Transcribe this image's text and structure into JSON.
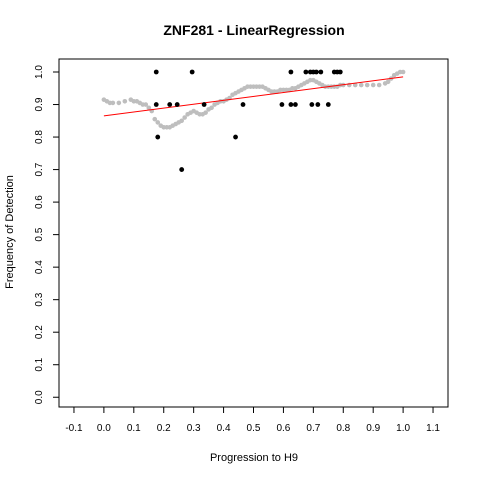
{
  "chart_data": {
    "type": "scatter",
    "title": "ZNF281 - LinearRegression",
    "xlabel": "Progression to H9",
    "ylabel": "Frequency of Detection",
    "xlim": [
      -0.15,
      1.15
    ],
    "ylim": [
      -0.03,
      1.04
    ],
    "xticks": [
      "-0.1",
      "0.0",
      "0.1",
      "0.2",
      "0.3",
      "0.4",
      "0.5",
      "0.6",
      "0.7",
      "0.8",
      "0.9",
      "1.0",
      "1.1"
    ],
    "yticks": [
      "0.0",
      "0.1",
      "0.2",
      "0.3",
      "0.4",
      "0.5",
      "0.6",
      "0.7",
      "0.8",
      "0.9",
      "1.0"
    ],
    "grid": false,
    "legend": "none",
    "colors": {
      "observed": "#000000",
      "smoothed": "#bebebe",
      "regression": "#ff0000"
    },
    "series": [
      {
        "role": "observed",
        "points": [
          [
            0.175,
            1.0
          ],
          [
            0.175,
            0.9
          ],
          [
            0.18,
            0.8
          ],
          [
            0.22,
            0.9
          ],
          [
            0.245,
            0.9
          ],
          [
            0.26,
            0.7
          ],
          [
            0.295,
            1.0
          ],
          [
            0.335,
            0.9
          ],
          [
            0.44,
            0.8
          ],
          [
            0.465,
            0.9
          ],
          [
            0.595,
            0.9
          ],
          [
            0.625,
            1.0
          ],
          [
            0.625,
            0.9
          ],
          [
            0.64,
            0.9
          ],
          [
            0.675,
            1.0
          ],
          [
            0.69,
            1.0
          ],
          [
            0.695,
            0.9
          ],
          [
            0.7,
            1.0
          ],
          [
            0.71,
            1.0
          ],
          [
            0.715,
            0.9
          ],
          [
            0.725,
            1.0
          ],
          [
            0.75,
            0.9
          ],
          [
            0.77,
            1.0
          ],
          [
            0.78,
            1.0
          ],
          [
            0.79,
            1.0
          ]
        ]
      },
      {
        "role": "smoothed",
        "points": [
          [
            0.0,
            0.915
          ],
          [
            0.01,
            0.91
          ],
          [
            0.02,
            0.905
          ],
          [
            0.03,
            0.905
          ],
          [
            0.05,
            0.905
          ],
          [
            0.07,
            0.91
          ],
          [
            0.09,
            0.915
          ],
          [
            0.1,
            0.91
          ],
          [
            0.11,
            0.91
          ],
          [
            0.12,
            0.905
          ],
          [
            0.13,
            0.9
          ],
          [
            0.14,
            0.9
          ],
          [
            0.15,
            0.89
          ],
          [
            0.16,
            0.88
          ],
          [
            0.17,
            0.855
          ],
          [
            0.18,
            0.845
          ],
          [
            0.19,
            0.835
          ],
          [
            0.2,
            0.83
          ],
          [
            0.21,
            0.83
          ],
          [
            0.22,
            0.83
          ],
          [
            0.23,
            0.835
          ],
          [
            0.24,
            0.84
          ],
          [
            0.25,
            0.845
          ],
          [
            0.26,
            0.85
          ],
          [
            0.27,
            0.86
          ],
          [
            0.28,
            0.87
          ],
          [
            0.29,
            0.875
          ],
          [
            0.3,
            0.88
          ],
          [
            0.31,
            0.875
          ],
          [
            0.32,
            0.87
          ],
          [
            0.33,
            0.87
          ],
          [
            0.34,
            0.875
          ],
          [
            0.35,
            0.885
          ],
          [
            0.36,
            0.89
          ],
          [
            0.37,
            0.9
          ],
          [
            0.38,
            0.905
          ],
          [
            0.39,
            0.91
          ],
          [
            0.4,
            0.91
          ],
          [
            0.41,
            0.915
          ],
          [
            0.42,
            0.92
          ],
          [
            0.43,
            0.93
          ],
          [
            0.44,
            0.935
          ],
          [
            0.45,
            0.94
          ],
          [
            0.46,
            0.945
          ],
          [
            0.47,
            0.95
          ],
          [
            0.48,
            0.955
          ],
          [
            0.49,
            0.955
          ],
          [
            0.5,
            0.955
          ],
          [
            0.51,
            0.955
          ],
          [
            0.52,
            0.955
          ],
          [
            0.53,
            0.955
          ],
          [
            0.54,
            0.95
          ],
          [
            0.55,
            0.945
          ],
          [
            0.56,
            0.94
          ],
          [
            0.57,
            0.94
          ],
          [
            0.58,
            0.94
          ],
          [
            0.59,
            0.945
          ],
          [
            0.6,
            0.945
          ],
          [
            0.61,
            0.945
          ],
          [
            0.62,
            0.945
          ],
          [
            0.63,
            0.95
          ],
          [
            0.64,
            0.95
          ],
          [
            0.65,
            0.955
          ],
          [
            0.66,
            0.96
          ],
          [
            0.67,
            0.965
          ],
          [
            0.68,
            0.97
          ],
          [
            0.69,
            0.975
          ],
          [
            0.7,
            0.975
          ],
          [
            0.71,
            0.97
          ],
          [
            0.72,
            0.965
          ],
          [
            0.73,
            0.96
          ],
          [
            0.74,
            0.955
          ],
          [
            0.75,
            0.955
          ],
          [
            0.76,
            0.955
          ],
          [
            0.77,
            0.955
          ],
          [
            0.78,
            0.955
          ],
          [
            0.79,
            0.96
          ],
          [
            0.8,
            0.96
          ],
          [
            0.82,
            0.96
          ],
          [
            0.84,
            0.96
          ],
          [
            0.86,
            0.96
          ],
          [
            0.88,
            0.96
          ],
          [
            0.9,
            0.96
          ],
          [
            0.92,
            0.96
          ],
          [
            0.94,
            0.965
          ],
          [
            0.95,
            0.97
          ],
          [
            0.96,
            0.98
          ],
          [
            0.97,
            0.99
          ],
          [
            0.98,
            0.995
          ],
          [
            0.99,
            1.0
          ],
          [
            1.0,
            1.0
          ]
        ]
      }
    ],
    "regression": {
      "x": [
        0.0,
        1.0
      ],
      "y": [
        0.865,
        0.985
      ]
    }
  }
}
